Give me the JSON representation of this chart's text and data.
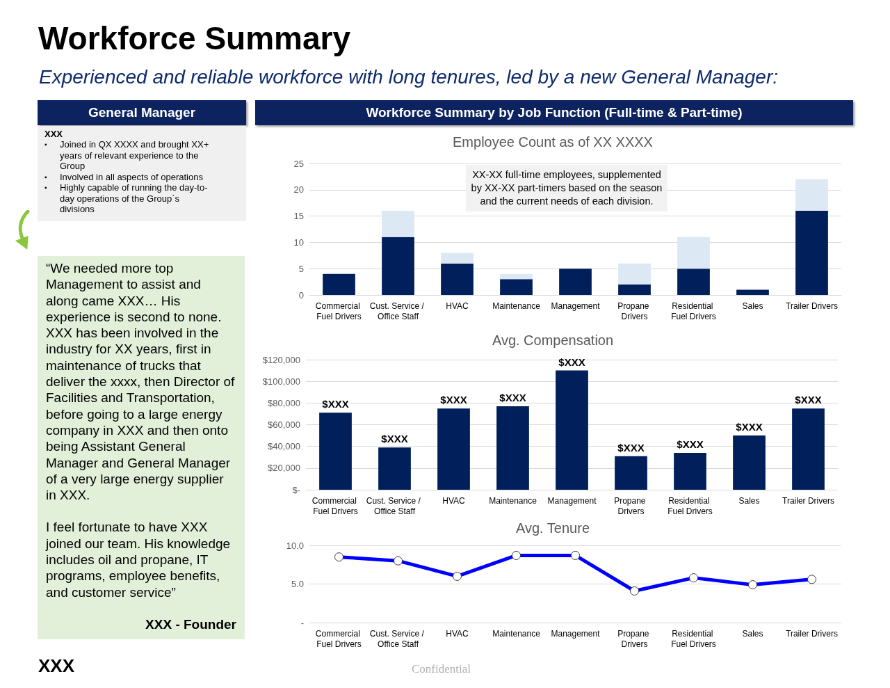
{
  "chart_data": [
    {
      "type": "other",
      "title": "Workforce Summary",
      "subtitle": "Experienced and reliable workforce with long tenures, led by a new General Manager:",
      "annotations": [
        "XXX",
        "Confidential"
      ]
    },
    {
      "type": "other",
      "title": "General Manager",
      "annotations": [
        "XXX",
        "▪ Joined in QX XXXX and brought XX+ years of relevant experience to the Group",
        "▪ Involved in all aspects of operations",
        "▪ Highly capable of running the day-to-day operations of the Group`s divisions"
      ]
    },
    {
      "type": "other",
      "annotations": [
        "“We needed more top Management to assist and along came XXX… His experience is second to none. XXX has been involved in the industry for XX years, first in maintenance of trucks that deliver the xxxx, then Director of Facilities and Transportation, before going to a large energy company in XXX and then onto being Assistant General Manager and General Manager of a very large energy supplier in XXX.",
        "I feel fortunate to have XXX joined our team. His knowledge includes oil and propane, IT programs, employee benefits, and customer service”",
        "XXX - Founder"
      ]
    },
    {
      "type": "other",
      "title": "Workforce Summary by Job Function (Full-time & Part-time)"
    },
    {
      "type": "bar",
      "title": "Employee Count as of XX XXXX",
      "stacked": true,
      "categories": [
        "Commercial Fuel Drivers",
        "Cust. Service / Office Staff",
        "HVAC",
        "Maintenance",
        "Management",
        "Propane Drivers",
        "Residential Fuel Drivers",
        "Sales",
        "Trailer Drivers"
      ],
      "series": [
        {
          "color": "#001f5b",
          "values": [
            4,
            11,
            6,
            3,
            5,
            2,
            5,
            1,
            16
          ]
        },
        {
          "color": "#dce8f4",
          "values": [
            0,
            5,
            2,
            1,
            0,
            4,
            6,
            0,
            6
          ]
        }
      ],
      "ylim": [
        0,
        25
      ],
      "yticks": [
        0,
        5,
        10,
        15,
        20,
        25
      ],
      "grid": "y",
      "annotations": [
        "XX-XX full-time employees, supplemented by XX-XX part-timers based on the season and the current needs of each division."
      ]
    },
    {
      "type": "bar",
      "title": "Avg. Compensation",
      "categories": [
        "Commercial Fuel Drivers",
        "Cust. Service / Office Staff",
        "HVAC",
        "Maintenance",
        "Management",
        "Propane Drivers",
        "Residential Fuel Drivers",
        "Sales",
        "Trailer Drivers"
      ],
      "color": "#001f5b",
      "values": [
        71000,
        39000,
        75000,
        77000,
        110000,
        31000,
        34000,
        50000,
        75000
      ],
      "value_labels": [
        "$XXX",
        "$XXX",
        "$XXX",
        "$XXX",
        "$XXX",
        "$XXX",
        "$XXX",
        "$XXX",
        "$XXX"
      ],
      "ylim": [
        0,
        120000
      ],
      "yticks": [
        {
          "value": 0,
          "label": "$-"
        },
        {
          "value": 20000,
          "label": "$20,000"
        },
        {
          "value": 40000,
          "label": "$40,000"
        },
        {
          "value": 60000,
          "label": "$60,000"
        },
        {
          "value": 80000,
          "label": "$80,000"
        },
        {
          "value": 100000,
          "label": "$100,000"
        },
        {
          "value": 120000,
          "label": "$120,000"
        }
      ],
      "grid": "y"
    },
    {
      "type": "line",
      "title": "Avg. Tenure",
      "categories": [
        "Commercial Fuel Drivers",
        "Cust. Service / Office Staff",
        "HVAC",
        "Maintenance",
        "Management",
        "Propane Drivers",
        "Residential Fuel Drivers",
        "Sales",
        "Trailer Drivers"
      ],
      "color": "#0000ff",
      "marker": "circle",
      "line_style": "solid",
      "values": [
        8.5,
        8.0,
        6.0,
        8.7,
        8.7,
        4.1,
        5.8,
        4.9,
        5.6
      ],
      "ylim": [
        0,
        10
      ],
      "yticks": [
        {
          "value": 0,
          "label": "-"
        },
        {
          "value": 5,
          "label": "5.0"
        },
        {
          "value": 10,
          "label": "10.0"
        }
      ],
      "grid": "y"
    }
  ]
}
